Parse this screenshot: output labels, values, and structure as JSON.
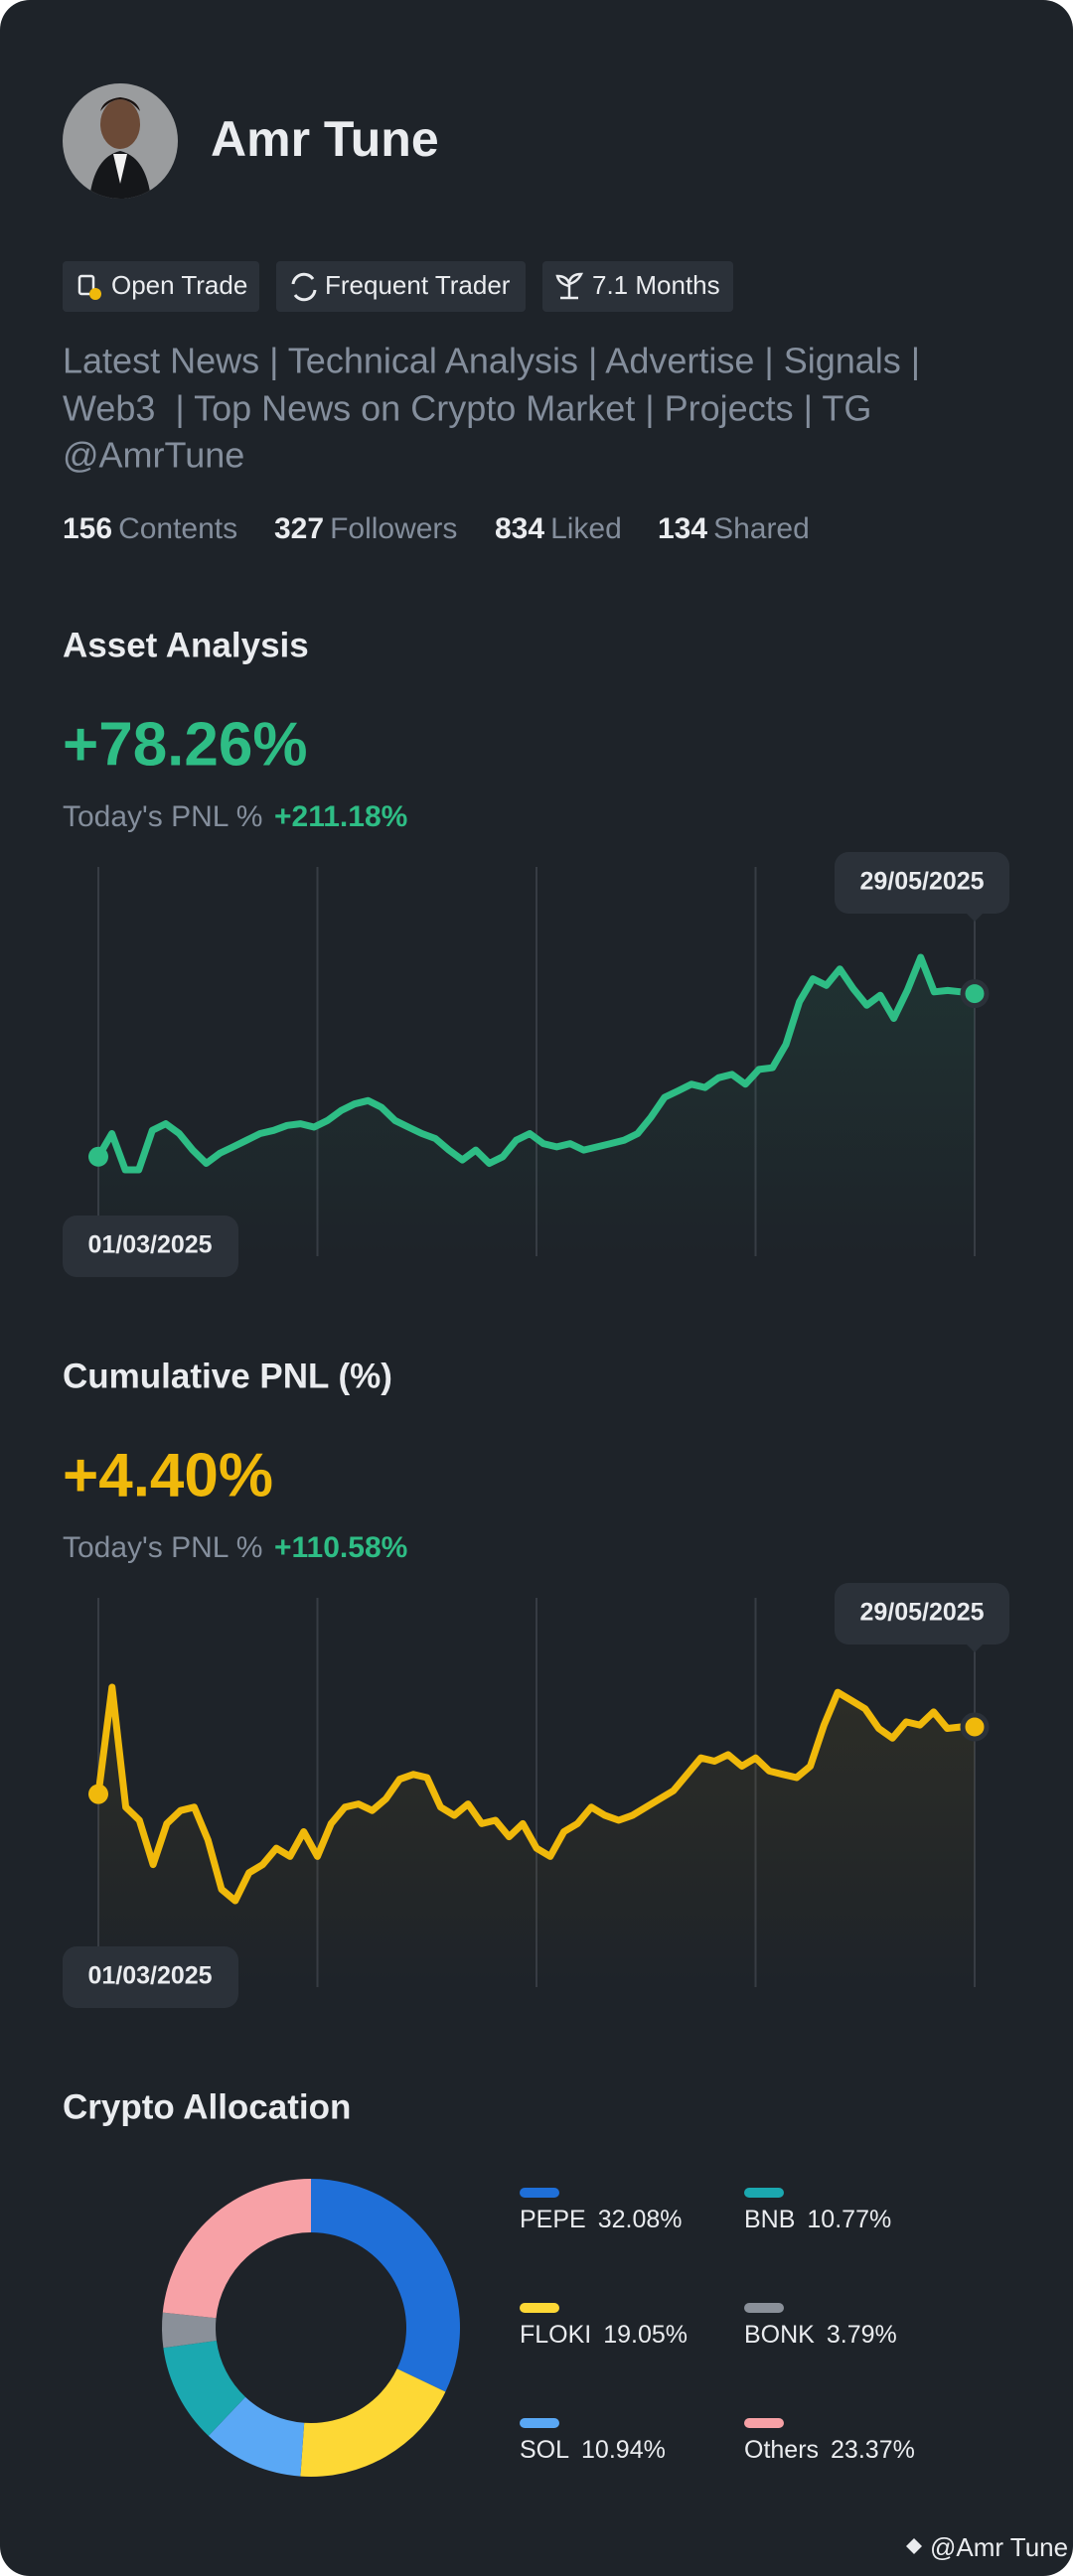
{
  "profile": {
    "name": "Amr Tune",
    "tags": [
      "Open Trade",
      "Frequent Trader",
      "7.1 Months"
    ],
    "bio_lines": [
      "Latest News | Technical Analysis | Advertise | Signals |",
      "Web3  | Top News on Crypto Market | Projects | TG",
      "@AmrTune"
    ],
    "stats": [
      {
        "value": 156,
        "label": "Contents"
      },
      {
        "value": 327,
        "label": "Followers"
      },
      {
        "value": 834,
        "label": "Liked"
      },
      {
        "value": 134,
        "label": "Shared"
      }
    ]
  },
  "chart_data": [
    {
      "type": "line",
      "title": "Asset Analysis",
      "headline": "+78.26%",
      "pnl_label": "Today's PNL %",
      "pnl_value": "+211.18%",
      "start_label": "01/03/2025",
      "end_label": "29/05/2025",
      "series": [
        {
          "color": "#2ebd85",
          "values": [
            0,
            11.1,
            -6.3,
            -6.3,
            12.6,
            15.8,
            11.1,
            3.2,
            -3.2,
            1.6,
            4.7,
            7.9,
            11.1,
            12.6,
            15.0,
            15.8,
            14.2,
            17.4,
            22.1,
            25.3,
            26.9,
            23.7,
            17.4,
            14.2,
            11.1,
            8.7,
            3.2,
            -1.6,
            3.2,
            -3.2,
            0,
            7.9,
            11.1,
            6.3,
            4.7,
            6.3,
            3.2,
            4.7,
            6.3,
            7.9,
            11.1,
            19.0,
            28.5,
            31.6,
            34.8,
            33.2,
            37.9,
            39.5,
            34.8,
            41.9,
            42.7,
            53.8,
            74.3,
            85.4,
            82.2,
            90.1,
            80.6,
            72.7,
            77.5,
            66.4,
            79.8,
            95.7,
            79.1,
            79.8,
            79.1,
            78.26
          ]
        }
      ]
    },
    {
      "type": "line",
      "title": "Cumulative PNL (%)",
      "headline": "+4.40%",
      "pnl_label": "Today's PNL %",
      "pnl_value": "+110.58%",
      "start_label": "01/03/2025",
      "end_label": "29/05/2025",
      "series": [
        {
          "color": "#f0b90b",
          "values": [
            0,
            7,
            -0.86,
            -1.72,
            -4.62,
            -1.94,
            -1.08,
            -0.86,
            -3.01,
            -6.24,
            -6.99,
            -5.16,
            -4.62,
            -3.55,
            -4.09,
            -2.47,
            -4.09,
            -1.94,
            -0.86,
            -0.65,
            -1.08,
            -0.32,
            0.97,
            1.29,
            1.08,
            -0.86,
            -1.4,
            -0.65,
            -1.94,
            -1.72,
            -2.8,
            -1.94,
            -3.55,
            -4.09,
            -2.47,
            -1.94,
            -0.86,
            -1.4,
            -1.72,
            -1.4,
            -0.86,
            -0.32,
            0.22,
            1.29,
            2.37,
            2.15,
            2.58,
            1.83,
            2.37,
            1.51,
            1.29,
            1.08,
            1.83,
            4.52,
            6.67,
            6.13,
            5.59,
            4.3,
            3.66,
            4.73,
            4.52,
            5.38,
            4.3,
            4.4,
            4.4
          ]
        }
      ]
    },
    {
      "type": "donut",
      "title": "Crypto Allocation",
      "categories": [
        "PEPE",
        "FLOKI",
        "SOL",
        "BNB",
        "BONK",
        "Others"
      ],
      "values": [
        32.08,
        19.05,
        10.94,
        10.77,
        3.79,
        23.37
      ],
      "value_labels": [
        "32.08%",
        "19.05%",
        "10.94%",
        "10.77%",
        "3.79%",
        "23.37%"
      ],
      "colors": [
        "#1f6fd8",
        "#fdd835",
        "#5aa8f5",
        "#1ba8b0",
        "#8a9099",
        "#f7a1a6"
      ]
    }
  ],
  "watermark": "@Amr Tune"
}
